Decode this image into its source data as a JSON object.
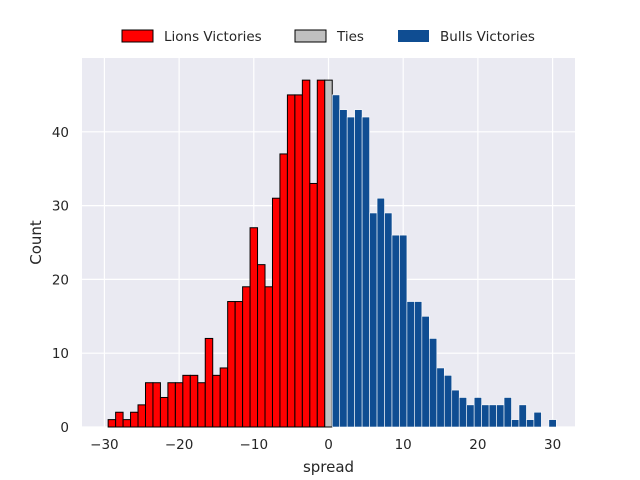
{
  "chart_data": {
    "type": "bar",
    "title": "",
    "xlabel": "spread",
    "ylabel": "Count",
    "xlim": [
      -33,
      33
    ],
    "ylim": [
      0,
      50
    ],
    "xticks": [
      -30,
      -20,
      -10,
      0,
      10,
      20,
      30
    ],
    "yticks": [
      0,
      10,
      20,
      30,
      40
    ],
    "xtick_labels": [
      "−30",
      "−20",
      "−10",
      "0",
      "10",
      "20",
      "30"
    ],
    "ytick_labels": [
      "0",
      "10",
      "20",
      "30",
      "40"
    ],
    "grid": true,
    "legend_position": "top-center",
    "background": "#eaeaf2",
    "series": [
      {
        "name": "Lions Victories",
        "color": "#ff0000",
        "edgecolor": "#000000",
        "x": [
          -29,
          -28,
          -27,
          -26,
          -25,
          -24,
          -23,
          -22,
          -21,
          -20,
          -19,
          -18,
          -17,
          -16,
          -15,
          -14,
          -13,
          -12,
          -11,
          -10,
          -9,
          -8,
          -7,
          -6,
          -5,
          -4,
          -3,
          -2,
          -1
        ],
        "values": [
          1,
          2,
          1,
          2,
          3,
          6,
          6,
          4,
          6,
          6,
          7,
          7,
          6,
          12,
          7,
          8,
          17,
          17,
          19,
          27,
          22,
          19,
          31,
          37,
          45,
          45,
          47,
          33,
          47
        ]
      },
      {
        "name": "Ties",
        "color": "#c0c0c0",
        "edgecolor": "#000000",
        "x": [
          0
        ],
        "values": [
          47
        ]
      },
      {
        "name": "Bulls Victories",
        "color": "#0f4d92",
        "edgecolor": "none",
        "x": [
          1,
          2,
          3,
          4,
          5,
          6,
          7,
          8,
          9,
          10,
          11,
          12,
          13,
          14,
          15,
          16,
          17,
          18,
          19,
          20,
          21,
          22,
          23,
          24,
          25,
          26,
          27,
          28,
          30
        ],
        "values": [
          45,
          43,
          42,
          43,
          42,
          29,
          31,
          29,
          26,
          26,
          17,
          17,
          15,
          12,
          8,
          7,
          5,
          4,
          3,
          4,
          3,
          3,
          3,
          4,
          1,
          3,
          1,
          2,
          1
        ]
      }
    ]
  }
}
